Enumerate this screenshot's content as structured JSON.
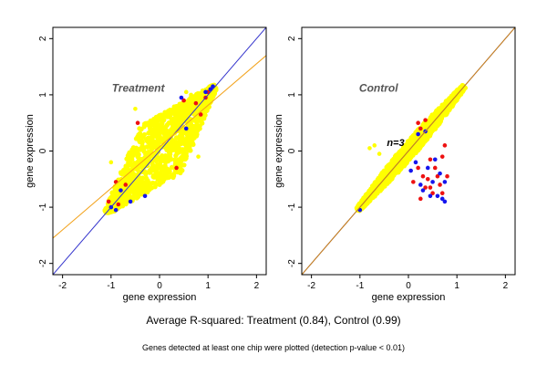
{
  "colors": {
    "background": "#ffffff",
    "axis": "#000000",
    "fit_line_treatment": "#f2a21b",
    "fit_line_control": "#d4870f",
    "identity_line": "#3333cc",
    "point_yellow": "#ffff00",
    "point_red": "#ee1111",
    "point_blue": "#1515ee",
    "panel_title": "#555555"
  },
  "captions": {
    "main": "Average R-squared: Treatment (0.84), Control (0.99)",
    "sub": "Genes detected at least one chip were plotted (detection p-value < 0.01)"
  },
  "chart_data": [
    {
      "type": "scatter",
      "title": "Treatment",
      "xlabel": "gene expression",
      "ylabel": "gene expression",
      "xlim": [
        -2.2,
        2.2
      ],
      "ylim": [
        -2.2,
        2.2
      ],
      "xticks": [
        -2,
        -1,
        0,
        1,
        2
      ],
      "yticks": [
        -2,
        -1,
        0,
        1,
        2
      ],
      "x_tick_labels": [
        "-2",
        "-1",
        "0",
        "1",
        "2"
      ],
      "y_tick_labels": [
        "-2",
        "-1",
        "0",
        "1",
        "2"
      ],
      "annotation": "",
      "lines": [
        {
          "kind": "identity",
          "color": "#3333cc",
          "x": [
            -2.2,
            2.2
          ],
          "y": [
            -2.2,
            2.2
          ]
        },
        {
          "kind": "fit",
          "color": "#f2a21b",
          "x": [
            -2.2,
            2.2
          ],
          "y": [
            -1.55,
            1.7
          ]
        }
      ],
      "cloud": {
        "shape": "diamond",
        "center": [
          0,
          0
        ],
        "x_range": [
          -1.1,
          1.15
        ],
        "y_range": [
          -1.1,
          1.15
        ],
        "spread": 0.55
      },
      "series": [
        {
          "color": "#ee1111",
          "points": [
            [
              -0.85,
              -0.95
            ],
            [
              -1.05,
              -0.9
            ],
            [
              -0.7,
              -0.6
            ],
            [
              0.75,
              0.85
            ],
            [
              1.0,
              1.05
            ],
            [
              0.5,
              0.9
            ],
            [
              0.85,
              0.65
            ],
            [
              -0.45,
              0.5
            ],
            [
              0.35,
              -0.3
            ],
            [
              -0.9,
              -0.55
            ],
            [
              0.95,
              0.95
            ]
          ]
        },
        {
          "color": "#1515ee",
          "points": [
            [
              -0.9,
              -1.05
            ],
            [
              -1.0,
              -1.0
            ],
            [
              0.95,
              1.05
            ],
            [
              1.05,
              1.1
            ],
            [
              0.45,
              0.95
            ],
            [
              -0.6,
              -0.9
            ],
            [
              0.55,
              0.4
            ],
            [
              -0.3,
              -0.8
            ],
            [
              1.1,
              1.15
            ],
            [
              -0.8,
              -0.7
            ]
          ]
        },
        {
          "color": "#ffff00",
          "points": [
            [
              0.55,
              1.05
            ],
            [
              0.65,
              1.0
            ],
            [
              -1.0,
              -0.2
            ],
            [
              0.8,
              -0.1
            ],
            [
              -0.5,
              0.75
            ],
            [
              0.6,
              0.2
            ]
          ]
        }
      ]
    },
    {
      "type": "scatter",
      "title": "Control",
      "xlabel": "gene expression",
      "ylabel": "gene expression",
      "xlim": [
        -2.2,
        2.2
      ],
      "ylim": [
        -2.2,
        2.2
      ],
      "xticks": [
        -2,
        -1,
        0,
        1,
        2
      ],
      "yticks": [
        -2,
        -1,
        0,
        1,
        2
      ],
      "x_tick_labels": [
        "-2",
        "-1",
        "0",
        "1",
        "2"
      ],
      "y_tick_labels": [
        "-2",
        "-1",
        "0",
        "1",
        "2"
      ],
      "annotation": "n=3",
      "lines": [
        {
          "kind": "identity",
          "color": "#3333cc",
          "x": [
            -2.2,
            2.2
          ],
          "y": [
            -2.2,
            2.2
          ]
        },
        {
          "kind": "fit",
          "color": "#d4870f",
          "x": [
            -2.2,
            2.2
          ],
          "y": [
            -2.2,
            2.2
          ]
        }
      ],
      "cloud": {
        "shape": "band",
        "center": [
          0,
          0
        ],
        "x_range": [
          -1.05,
          1.15
        ],
        "y_range": [
          -1.05,
          1.15
        ],
        "spread": 0.12
      },
      "series": [
        {
          "color": "#ee1111",
          "points": [
            [
              0.1,
              -0.55
            ],
            [
              0.2,
              -0.3
            ],
            [
              0.3,
              -0.45
            ],
            [
              0.4,
              -0.5
            ],
            [
              0.45,
              -0.15
            ],
            [
              0.55,
              -0.3
            ],
            [
              0.65,
              -0.6
            ],
            [
              0.7,
              -0.1
            ],
            [
              0.75,
              0.1
            ],
            [
              0.5,
              -0.75
            ],
            [
              0.35,
              -0.65
            ],
            [
              0.6,
              -0.45
            ],
            [
              0.25,
              -0.85
            ],
            [
              0.45,
              -0.65
            ],
            [
              0.7,
              -0.75
            ],
            [
              0.8,
              -0.45
            ],
            [
              0.2,
              0.5
            ],
            [
              0.25,
              0.4
            ],
            [
              0.35,
              0.55
            ]
          ]
        },
        {
          "color": "#1515ee",
          "points": [
            [
              0.15,
              -0.2
            ],
            [
              0.25,
              -0.6
            ],
            [
              0.4,
              -0.3
            ],
            [
              0.5,
              -0.55
            ],
            [
              0.55,
              -0.15
            ],
            [
              0.6,
              -0.8
            ],
            [
              0.65,
              -0.4
            ],
            [
              0.7,
              -0.85
            ],
            [
              0.3,
              -0.7
            ],
            [
              0.45,
              -0.8
            ],
            [
              0.75,
              -0.55
            ],
            [
              0.05,
              -0.35
            ],
            [
              0.2,
              0.3
            ],
            [
              0.35,
              0.35
            ],
            [
              -1.0,
              -1.05
            ],
            [
              0.75,
              -0.9
            ]
          ]
        },
        {
          "color": "#ffff00",
          "points": [
            [
              -0.8,
              0.05
            ],
            [
              -0.7,
              0.1
            ],
            [
              -0.6,
              -0.05
            ]
          ]
        }
      ]
    }
  ]
}
